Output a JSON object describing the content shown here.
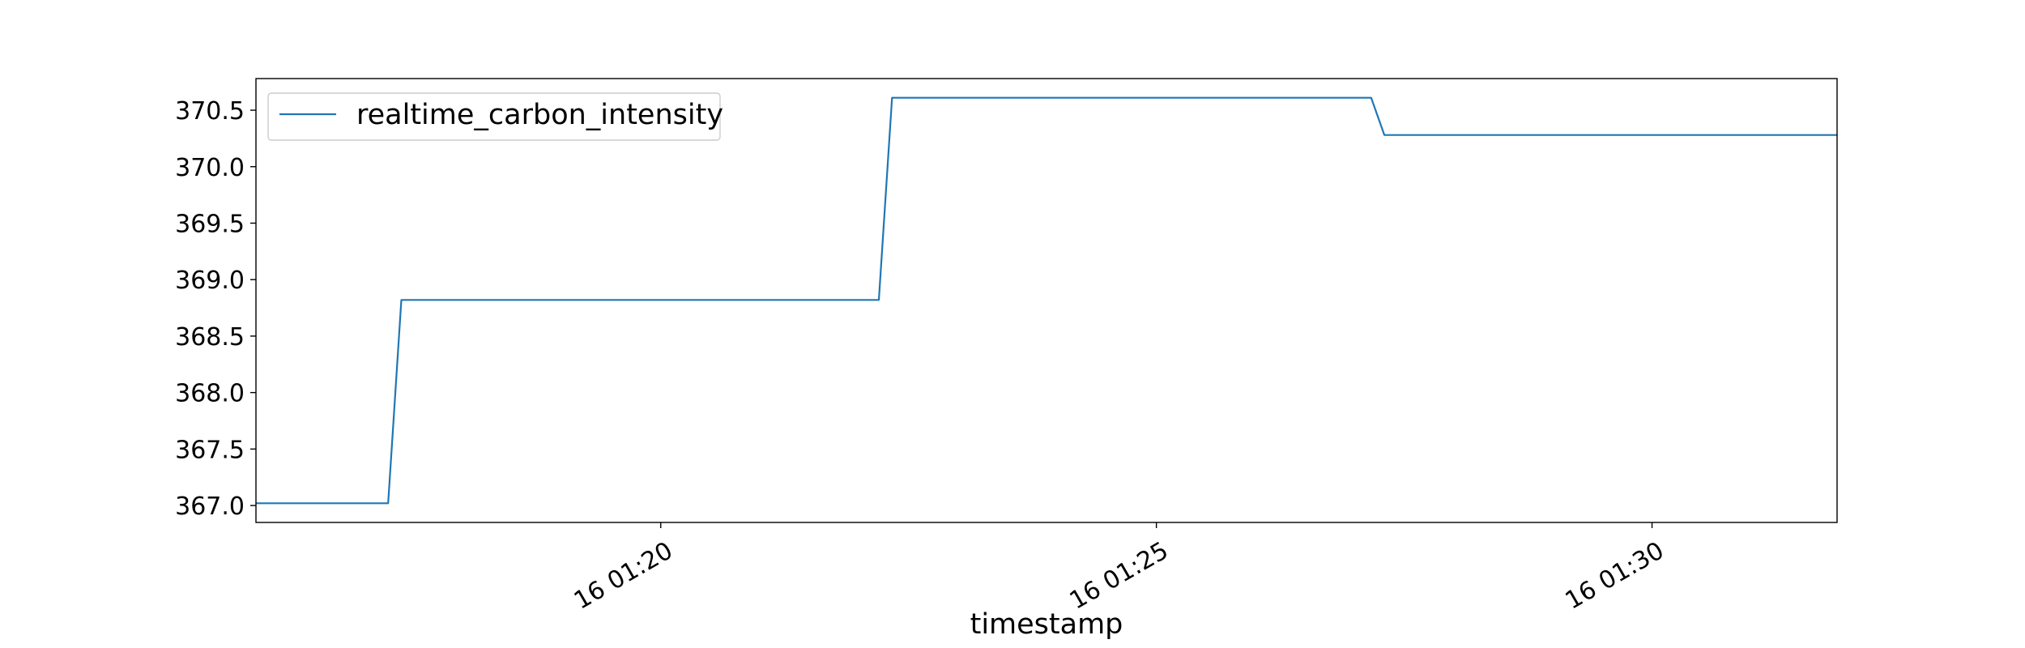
{
  "chart_data": {
    "type": "line",
    "title": "",
    "xlabel": "timestamp",
    "ylabel": "",
    "x_tick_labels": [
      "16 01:20",
      "16 01:25",
      "16 01:30"
    ],
    "y_tick_labels": [
      "367.0",
      "367.5",
      "368.0",
      "368.5",
      "369.0",
      "369.5",
      "370.0",
      "370.5"
    ],
    "y_ticks": [
      367.0,
      367.5,
      368.0,
      368.5,
      369.0,
      369.5,
      370.0,
      370.5
    ],
    "ylim": [
      366.85,
      370.78
    ],
    "xlim": [
      "01:15:55",
      "01:31:52"
    ],
    "x_ticks": [
      "01:20:00",
      "01:25:00",
      "01:30:00"
    ],
    "grid": false,
    "legend_position": "upper-left",
    "series": [
      {
        "name": "realtime_carbon_intensity",
        "color": "#1f77b4",
        "x": [
          "01:15:55",
          "01:17:15",
          "01:17:23",
          "01:22:12",
          "01:22:20",
          "01:27:10",
          "01:27:18",
          "01:31:52"
        ],
        "y": [
          367.02,
          367.02,
          368.82,
          368.82,
          370.61,
          370.61,
          370.28,
          370.28
        ]
      }
    ]
  }
}
